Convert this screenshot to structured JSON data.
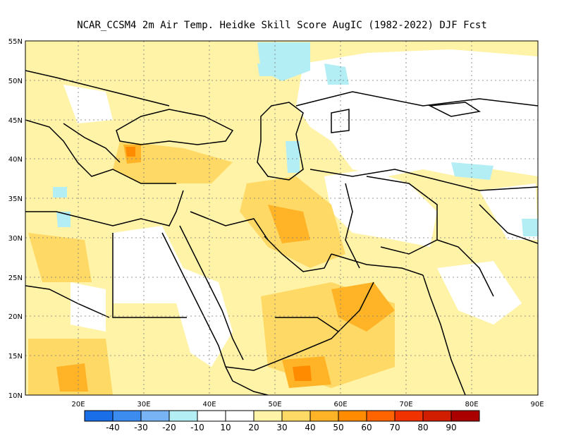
{
  "title": "NCAR_CCSM4  2m Air Temp. Heidke Skill Score AugIC (1982-2022) DJF Fcst",
  "map": {
    "lon_range": [
      12,
      90
    ],
    "lat_range": [
      10,
      55
    ],
    "grid": "dotted",
    "lon_ticks": [
      "20E",
      "30E",
      "40E",
      "50E",
      "60E",
      "70E",
      "80E",
      "90E"
    ],
    "lat_ticks": [
      "55N",
      "50N",
      "45N",
      "40N",
      "35N",
      "30N",
      "25N",
      "20N",
      "15N",
      "10N"
    ]
  },
  "colorbar": {
    "labels": [
      "-40",
      "-30",
      "-20",
      "-10",
      "10",
      "20",
      "30",
      "40",
      "50",
      "60",
      "70",
      "80",
      "90"
    ],
    "colors": [
      "#1a6ee8",
      "#3c8cf0",
      "#78b4f5",
      "#b4eef5",
      "#ffffff",
      "#fff3a8",
      "#ffd966",
      "#ffb428",
      "#ff8c00",
      "#ff6400",
      "#f03200",
      "#d21e00",
      "#aa0000"
    ]
  },
  "palette": {
    "light_yellow": "#fff3a8",
    "yellow": "#ffe27a",
    "orange_light": "#ffd966",
    "orange": "#ffb428",
    "dark_orange": "#ff8c00",
    "light_blue": "#b4eef5",
    "white": "#ffffff"
  }
}
